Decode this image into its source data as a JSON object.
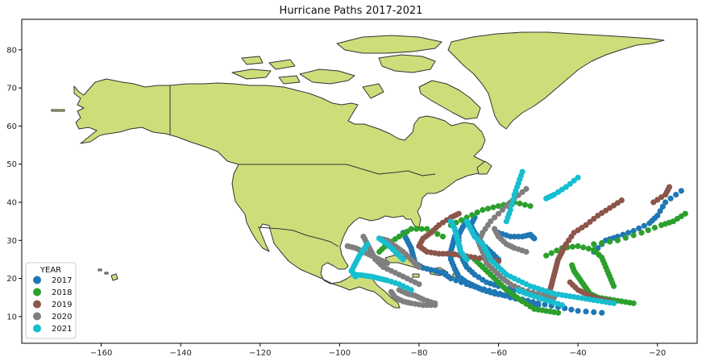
{
  "chart_data": {
    "type": "scatter",
    "title": "Hurricane Paths 2017-2021",
    "xlabel": "",
    "ylabel": "",
    "xlim": [
      -180,
      -10
    ],
    "ylim": [
      3,
      88
    ],
    "x_ticks": [
      -160,
      -140,
      -120,
      -100,
      -80,
      -60,
      -40,
      -20
    ],
    "y_ticks": [
      10,
      20,
      30,
      40,
      50,
      60,
      70,
      80
    ],
    "grid": false,
    "land_color": "#cedd7a",
    "land_edge_color": "#333333",
    "legend": {
      "title": "YEAR",
      "placement": "lower-left"
    },
    "series": [
      {
        "name": "2017",
        "color": "#1f77b4",
        "tracks": [
          [
            [
              -50,
              13
            ],
            [
              -53,
              14
            ],
            [
              -57,
              15
            ],
            [
              -61,
              16.5
            ],
            [
              -65,
              17.5
            ],
            [
              -68,
              18.5
            ],
            [
              -72,
              20
            ],
            [
              -74,
              21.5
            ],
            [
              -76,
              22
            ],
            [
              -79,
              22.8
            ],
            [
              -81,
              24
            ],
            [
              -81.5,
              26
            ],
            [
              -82,
              28
            ],
            [
              -83,
              30
            ],
            [
              -84,
              32
            ]
          ],
          [
            [
              -34,
              11
            ],
            [
              -40,
              11.5
            ],
            [
              -45,
              12.5
            ],
            [
              -50,
              13.5
            ],
            [
              -54,
              14.5
            ],
            [
              -58,
              15.5
            ],
            [
              -61,
              16
            ],
            [
              -64,
              17
            ],
            [
              -66,
              18
            ],
            [
              -68,
              19
            ],
            [
              -70,
              20.5
            ],
            [
              -71,
              22.5
            ],
            [
              -72,
              25
            ],
            [
              -72,
              27
            ],
            [
              -71.5,
              29
            ],
            [
              -71,
              31
            ]
          ],
          [
            [
              -47,
              14.5
            ],
            [
              -52,
              16
            ],
            [
              -56,
              17
            ],
            [
              -60,
              18
            ],
            [
              -63,
              19
            ],
            [
              -66,
              21
            ],
            [
              -68,
              23
            ],
            [
              -69,
              25
            ],
            [
              -69.5,
              27
            ],
            [
              -70,
              29
            ],
            [
              -70,
              31.5
            ],
            [
              -69,
              33.5
            ],
            [
              -68,
              35
            ]
          ],
          [
            [
              -60,
              25
            ],
            [
              -62,
              27
            ],
            [
              -64,
              29
            ],
            [
              -65,
              30.5
            ],
            [
              -66,
              32
            ],
            [
              -67,
              34
            ],
            [
              -66,
              36
            ]
          ],
          [
            [
              -36,
              27
            ],
            [
              -33,
              30
            ],
            [
              -30,
              31
            ],
            [
              -26,
              32.5
            ],
            [
              -22,
              34.5
            ],
            [
              -20,
              36.5
            ],
            [
              -18,
              40
            ],
            [
              -14,
              43
            ]
          ],
          [
            [
              -60,
              32
            ],
            [
              -57,
              31
            ],
            [
              -54,
              31
            ],
            [
              -52,
              31.5
            ],
            [
              -51,
              30.5
            ]
          ]
        ]
      },
      {
        "name": "2018",
        "color": "#2ca02c",
        "tracks": [
          [
            [
              -26,
              13.5
            ],
            [
              -29,
              14
            ],
            [
              -32,
              14.5
            ],
            [
              -35,
              15
            ],
            [
              -37,
              16
            ],
            [
              -38,
              17.5
            ],
            [
              -39,
              19
            ],
            [
              -40,
              20.5
            ],
            [
              -41,
              22
            ],
            [
              -41.5,
              23.5
            ]
          ],
          [
            [
              -45,
              11
            ],
            [
              -48,
              11.5
            ],
            [
              -51,
              12
            ],
            [
              -54,
              14
            ],
            [
              -56,
              15.5
            ],
            [
              -58,
              17
            ],
            [
              -60,
              19
            ],
            [
              -62,
              21
            ],
            [
              -64,
              23
            ],
            [
              -66,
              25
            ]
          ],
          [
            [
              -31,
              18
            ],
            [
              -32,
              20.5
            ],
            [
              -33,
              23
            ],
            [
              -34,
              25.5
            ],
            [
              -36,
              27.5
            ],
            [
              -40,
              28.5
            ],
            [
              -44,
              28
            ],
            [
              -48,
              26
            ]
          ],
          [
            [
              -13,
              37
            ],
            [
              -16,
              35
            ],
            [
              -19,
              34
            ],
            [
              -24,
              32
            ],
            [
              -30,
              30
            ],
            [
              -36,
              29
            ]
          ],
          [
            [
              -74,
              31
            ],
            [
              -78,
              33
            ],
            [
              -82,
              33
            ],
            [
              -85,
              31
            ],
            [
              -88,
              29
            ],
            [
              -90,
              27
            ]
          ],
          [
            [
              -72,
              34
            ],
            [
              -68,
              36
            ],
            [
              -64,
              38
            ],
            [
              -60,
              39
            ],
            [
              -56,
              40
            ],
            [
              -52,
              39
            ]
          ]
        ]
      },
      {
        "name": "2019",
        "color": "#8c564b",
        "tracks": [
          [
            [
              -48,
              15
            ],
            [
              -47,
              17
            ],
            [
              -46.5,
              19
            ],
            [
              -46,
              21
            ],
            [
              -45.5,
              23
            ],
            [
              -45,
              25
            ],
            [
              -44,
              27
            ],
            [
              -43,
              29
            ],
            [
              -41,
              32
            ],
            [
              -38,
              34
            ],
            [
              -35,
              36.5
            ],
            [
              -32,
              38.5
            ],
            [
              -29,
              40.5
            ]
          ],
          [
            [
              -78,
              27
            ],
            [
              -75,
              26.5
            ],
            [
              -72,
              26.5
            ],
            [
              -69,
              26
            ],
            [
              -66,
              25.5
            ],
            [
              -62,
              25
            ],
            [
              -60,
              24.5
            ]
          ],
          [
            [
              -42,
              19
            ],
            [
              -40,
              17
            ],
            [
              -38,
              16
            ],
            [
              -36,
              15
            ],
            [
              -34,
              14.5
            ],
            [
              -32,
              14
            ]
          ],
          [
            [
              -78,
              27
            ],
            [
              -80,
              28.5
            ],
            [
              -79,
              30.5
            ],
            [
              -77,
              32
            ],
            [
              -75,
              34
            ],
            [
              -72,
              36
            ],
            [
              -70,
              37
            ]
          ],
          [
            [
              -17,
              44
            ],
            [
              -18,
              42
            ],
            [
              -21,
              40
            ]
          ]
        ]
      },
      {
        "name": "2020",
        "color": "#7f7f7f",
        "tracks": [
          [
            [
              -76,
              13
            ],
            [
              -79,
              13
            ],
            [
              -82,
              13.5
            ],
            [
              -84,
              14
            ],
            [
              -86,
              15
            ],
            [
              -87,
              16.5
            ]
          ],
          [
            [
              -76,
              13.5
            ],
            [
              -79,
              14.5
            ],
            [
              -81,
              15.5
            ],
            [
              -83,
              16
            ],
            [
              -85,
              17
            ]
          ],
          [
            [
              -80,
              18.5
            ],
            [
              -83,
              20
            ],
            [
              -86,
              21.5
            ],
            [
              -89,
              23
            ],
            [
              -91,
              25
            ],
            [
              -92,
              27
            ],
            [
              -93,
              29
            ],
            [
              -94,
              31
            ]
          ],
          [
            [
              -46,
              15
            ],
            [
              -50,
              16
            ],
            [
              -54,
              17
            ],
            [
              -57,
              18.5
            ],
            [
              -59,
              20
            ],
            [
              -61,
              22
            ],
            [
              -63,
              24
            ],
            [
              -64,
              27
            ],
            [
              -65,
              29.5
            ],
            [
              -64,
              32
            ],
            [
              -62,
              35
            ],
            [
              -59,
              38
            ],
            [
              -56,
              41
            ],
            [
              -53,
              43.5
            ]
          ],
          [
            [
              -80,
              23
            ],
            [
              -82,
              25
            ],
            [
              -84,
              27
            ],
            [
              -86,
              28.5
            ],
            [
              -88,
              30
            ],
            [
              -90,
              30.5
            ]
          ],
          [
            [
              -98,
              28.5
            ],
            [
              -96,
              28
            ],
            [
              -94,
              27
            ],
            [
              -92,
              26
            ],
            [
              -90,
              25
            ],
            [
              -88,
              24
            ]
          ],
          [
            [
              -53,
              27
            ],
            [
              -56,
              28
            ],
            [
              -58,
              29
            ],
            [
              -60,
              31
            ],
            [
              -61,
              33
            ]
          ]
        ]
      },
      {
        "name": "2021",
        "color": "#17becf",
        "tracks": [
          [
            [
              -31,
              13.5
            ],
            [
              -34,
              14
            ],
            [
              -37,
              14.5
            ],
            [
              -40,
              15
            ],
            [
              -43,
              15.5
            ],
            [
              -46,
              16
            ],
            [
              -49,
              17
            ],
            [
              -52,
              18
            ],
            [
              -55,
              19.5
            ],
            [
              -58,
              21
            ],
            [
              -60,
              23
            ],
            [
              -62,
              25
            ],
            [
              -63,
              27
            ],
            [
              -64,
              29
            ],
            [
              -66,
              31
            ],
            [
              -67,
              33
            ],
            [
              -68,
              35
            ]
          ],
          [
            [
              -96,
              20.5
            ],
            [
              -97,
              22
            ],
            [
              -96,
              24
            ],
            [
              -95,
              26
            ],
            [
              -94,
              27.5
            ],
            [
              -93,
              29
            ]
          ],
          [
            [
              -82,
              17
            ],
            [
              -85,
              18.5
            ],
            [
              -88,
              19.5
            ],
            [
              -90,
              20
            ],
            [
              -92,
              20.5
            ],
            [
              -94,
              20.8
            ],
            [
              -96,
              21
            ]
          ],
          [
            [
              -72,
              35
            ],
            [
              -71,
              33
            ],
            [
              -70.5,
              31
            ],
            [
              -70,
              29
            ],
            [
              -69.5,
              27
            ],
            [
              -68,
              25
            ]
          ],
          [
            [
              -58,
              35
            ],
            [
              -57,
              38
            ],
            [
              -56,
              42
            ],
            [
              -55,
              45
            ],
            [
              -54,
              48
            ]
          ],
          [
            [
              -44,
              13
            ],
            [
              -47,
              14
            ],
            [
              -50,
              15
            ],
            [
              -53,
              16
            ],
            [
              -55,
              17
            ]
          ],
          [
            [
              -40,
              46.5
            ],
            [
              -43,
              44
            ],
            [
              -46,
              42
            ],
            [
              -48,
              41
            ]
          ],
          [
            [
              -84,
              25
            ],
            [
              -86,
              27
            ],
            [
              -88,
              29
            ],
            [
              -90,
              30.5
            ]
          ]
        ]
      }
    ]
  }
}
